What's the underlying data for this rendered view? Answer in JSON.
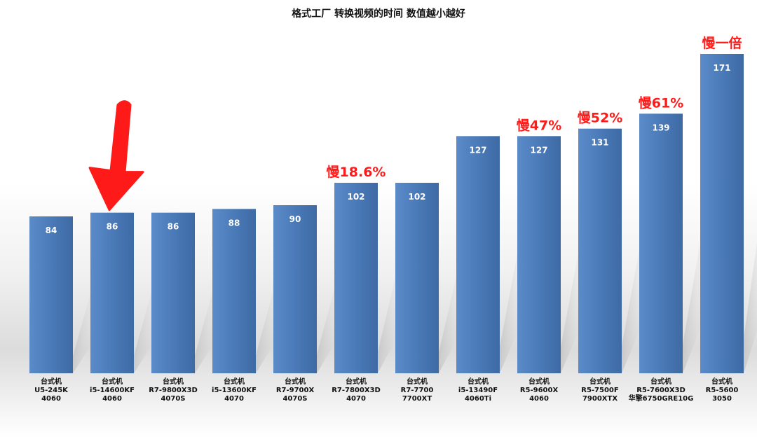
{
  "chart_data": {
    "type": "bar",
    "title": "格式工厂 转换视频的时间 数值越小越好",
    "xlabel": "",
    "ylabel": "",
    "ylim": [
      0,
      180
    ],
    "grid": false,
    "legend": "none",
    "bar_color": "#4a7ab8",
    "annotation_color": "#ff1a1a",
    "arrow_color": "#ff1a1a",
    "arrow_target_category_index": 1,
    "categories": [
      [
        "台式机",
        "U5-245K",
        "4060"
      ],
      [
        "台式机",
        "i5-14600KF",
        "4060"
      ],
      [
        "台式机",
        "R7-9800X3D",
        "4070S"
      ],
      [
        "台式机",
        "i5-13600KF",
        "4070"
      ],
      [
        "台式机",
        "R7-9700X",
        "4070S"
      ],
      [
        "台式机",
        "R7-7800X3D",
        "4070"
      ],
      [
        "台式机",
        "R7-7700",
        "7700XT"
      ],
      [
        "台式机",
        "i5-13490F",
        "4060Ti"
      ],
      [
        "台式机",
        "R5-9600X",
        "4060"
      ],
      [
        "台式机",
        "R5-7500F",
        "7900XTX"
      ],
      [
        "台式机",
        "R5-7600X3D",
        "华擎6750GRE10G"
      ],
      [
        "台式机",
        "R5-5600",
        "3050"
      ]
    ],
    "values": [
      84,
      86,
      86,
      88,
      90,
      102,
      102,
      127,
      127,
      131,
      139,
      171
    ],
    "annotations": [
      "",
      "",
      "",
      "",
      "",
      "慢18.6%",
      "",
      "",
      "慢47%",
      "慢52%",
      "慢61%",
      "慢一倍"
    ]
  }
}
